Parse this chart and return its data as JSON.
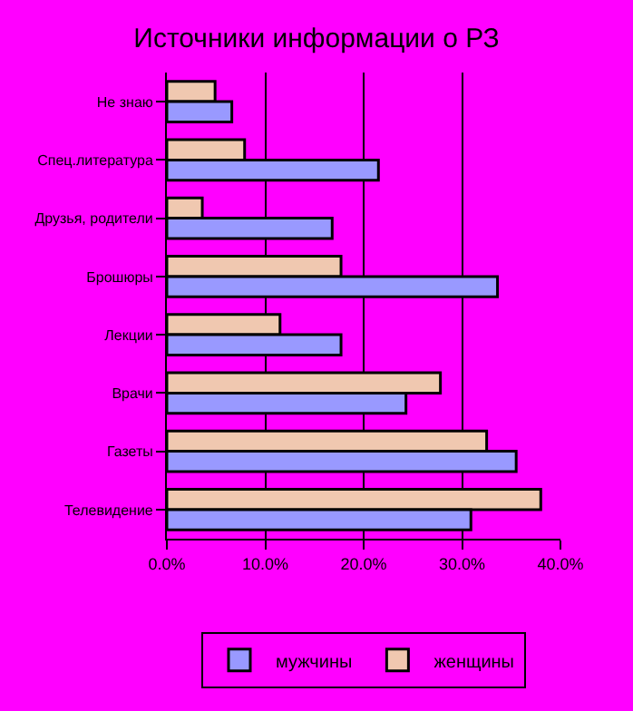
{
  "chart_data": {
    "type": "bar",
    "orientation": "horizontal",
    "title": "Источники информации о РЗ",
    "categories": [
      "Не знаю",
      "Спец.литература",
      "Друзья, родители",
      "Брошюры",
      "Лекции",
      "Врачи",
      "Газеты",
      "Телевидение"
    ],
    "series": [
      {
        "name": "мужчины",
        "color": "#9999ff",
        "values": [
          6.6,
          21.5,
          16.8,
          33.6,
          17.7,
          24.3,
          35.5,
          30.9
        ]
      },
      {
        "name": "женщины",
        "color": "#f0c8b0",
        "values": [
          4.9,
          7.9,
          3.6,
          17.7,
          11.5,
          27.8,
          32.5,
          38.0
        ]
      }
    ],
    "xlim": [
      0,
      40
    ],
    "xticks": [
      {
        "value": 0,
        "label": "0.0%"
      },
      {
        "value": 10,
        "label": "10.0%"
      },
      {
        "value": 20,
        "label": "20.0%"
      },
      {
        "value": 30,
        "label": "30.0%"
      },
      {
        "value": 40,
        "label": "40.0%"
      }
    ],
    "grid": "x",
    "legend": "bottom"
  }
}
